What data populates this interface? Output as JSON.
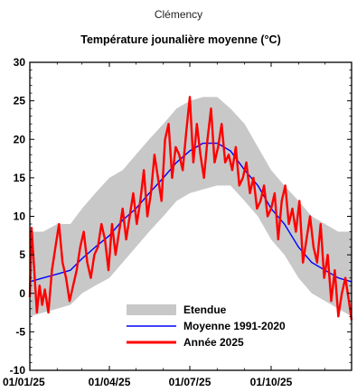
{
  "page": {
    "title": "Clémency"
  },
  "chart_data": {
    "type": "line",
    "title": "Température jounalière moyenne (°C)",
    "xlabel": "",
    "ylabel": "",
    "x_range": [
      "2025-01-01",
      "2025-12-31"
    ],
    "ylim": [
      -10,
      30
    ],
    "y_ticks": [
      -10,
      -5,
      0,
      5,
      10,
      15,
      20,
      25,
      30
    ],
    "x_ticks": [
      {
        "date": "2025-01-01",
        "label": "01/01/25"
      },
      {
        "date": "2025-04-01",
        "label": "01/04/25"
      },
      {
        "date": "2025-07-01",
        "label": "01/07/25"
      },
      {
        "date": "2025-10-01",
        "label": "01/10/25"
      }
    ],
    "grid": false,
    "legend_position": "bottom-center",
    "legend": [
      {
        "name": "Etendue",
        "kind": "area",
        "color": "#c8c8c8"
      },
      {
        "name": "Moyenne 1991-2020",
        "kind": "line",
        "color": "#0000ff"
      },
      {
        "name": "Année 2025",
        "kind": "line",
        "color": "#ff0000"
      }
    ],
    "series": [
      {
        "name": "Etendue",
        "kind": "range",
        "color": "#c8c8c8",
        "x": [
          "2025-01-01",
          "2025-01-16",
          "2025-02-01",
          "2025-02-16",
          "2025-03-01",
          "2025-03-16",
          "2025-04-01",
          "2025-04-16",
          "2025-05-01",
          "2025-05-16",
          "2025-06-01",
          "2025-06-16",
          "2025-07-01",
          "2025-07-16",
          "2025-08-01",
          "2025-08-16",
          "2025-09-01",
          "2025-09-16",
          "2025-10-01",
          "2025-10-16",
          "2025-11-01",
          "2025-11-16",
          "2025-12-01",
          "2025-12-16",
          "2025-12-31"
        ],
        "low": [
          -3,
          -2.5,
          -2,
          -1.5,
          0,
          1,
          2,
          4,
          6,
          8,
          10,
          12,
          13,
          13.5,
          14,
          14,
          12,
          10,
          7,
          5,
          2,
          0,
          -1,
          -2,
          -3
        ],
        "high": [
          8,
          8,
          9,
          9,
          11,
          13,
          15,
          16,
          18,
          20,
          22,
          24,
          25,
          25.5,
          25.5,
          24,
          22,
          19,
          16,
          14,
          12,
          10,
          9,
          8,
          8
        ]
      },
      {
        "name": "Moyenne 1991-2020",
        "kind": "line",
        "color": "#0000ff",
        "x": [
          "2025-01-01",
          "2025-01-16",
          "2025-02-01",
          "2025-02-16",
          "2025-03-01",
          "2025-03-16",
          "2025-04-01",
          "2025-04-16",
          "2025-05-01",
          "2025-05-16",
          "2025-06-01",
          "2025-06-16",
          "2025-07-01",
          "2025-07-16",
          "2025-08-01",
          "2025-08-16",
          "2025-09-01",
          "2025-09-16",
          "2025-10-01",
          "2025-10-16",
          "2025-11-01",
          "2025-11-16",
          "2025-12-01",
          "2025-12-16",
          "2025-12-31"
        ],
        "y": [
          1.5,
          2,
          2.5,
          3,
          4.5,
          6,
          7.5,
          9.5,
          11,
          13,
          15,
          17,
          18.5,
          19.5,
          19.5,
          18.5,
          16,
          14,
          11,
          9,
          6,
          4,
          3,
          2,
          1.5
        ]
      },
      {
        "name": "Année 2025",
        "kind": "line",
        "color": "#ff0000",
        "x": [
          "2025-01-01",
          "2025-01-03",
          "2025-01-06",
          "2025-01-09",
          "2025-01-12",
          "2025-01-15",
          "2025-01-18",
          "2025-01-22",
          "2025-01-26",
          "2025-01-30",
          "2025-02-03",
          "2025-02-07",
          "2025-02-11",
          "2025-02-15",
          "2025-02-19",
          "2025-02-23",
          "2025-02-27",
          "2025-03-03",
          "2025-03-07",
          "2025-03-11",
          "2025-03-15",
          "2025-03-19",
          "2025-03-23",
          "2025-03-27",
          "2025-03-31",
          "2025-04-04",
          "2025-04-08",
          "2025-04-12",
          "2025-04-16",
          "2025-04-20",
          "2025-04-24",
          "2025-04-28",
          "2025-05-02",
          "2025-05-06",
          "2025-05-10",
          "2025-05-14",
          "2025-05-18",
          "2025-05-22",
          "2025-05-26",
          "2025-05-30",
          "2025-06-03",
          "2025-06-07",
          "2025-06-11",
          "2025-06-15",
          "2025-06-19",
          "2025-06-23",
          "2025-06-27",
          "2025-07-01",
          "2025-07-05",
          "2025-07-09",
          "2025-07-13",
          "2025-07-17",
          "2025-07-21",
          "2025-07-25",
          "2025-07-29",
          "2025-08-02",
          "2025-08-06",
          "2025-08-10",
          "2025-08-14",
          "2025-08-18",
          "2025-08-22",
          "2025-08-26",
          "2025-08-30",
          "2025-09-03",
          "2025-09-07",
          "2025-09-11",
          "2025-09-15",
          "2025-09-19",
          "2025-09-23",
          "2025-09-27",
          "2025-10-01",
          "2025-10-05",
          "2025-10-09",
          "2025-10-13",
          "2025-10-17",
          "2025-10-21",
          "2025-10-25",
          "2025-10-29",
          "2025-11-02",
          "2025-11-06",
          "2025-11-10",
          "2025-11-14",
          "2025-11-18",
          "2025-11-22",
          "2025-11-26",
          "2025-11-30",
          "2025-12-04",
          "2025-12-08",
          "2025-12-12",
          "2025-12-16",
          "2025-12-20",
          "2025-12-24",
          "2025-12-28",
          "2025-12-31"
        ],
        "y": [
          -0.5,
          8.5,
          3,
          -2.5,
          1,
          -1.5,
          0.5,
          -2.5,
          3,
          6,
          9,
          4,
          2,
          -1,
          1,
          3,
          6,
          8,
          4,
          2,
          5,
          6,
          9,
          7,
          3,
          9,
          5,
          8,
          11,
          7,
          10,
          13,
          9,
          12,
          16,
          10,
          13,
          18,
          15,
          12,
          20,
          22,
          15,
          19,
          18,
          16,
          21,
          25.5,
          17,
          22,
          18,
          15,
          20,
          24,
          17,
          19,
          22,
          17,
          18,
          16,
          19,
          14,
          15,
          17,
          13,
          15,
          11,
          12,
          14,
          10,
          11,
          13,
          7,
          12,
          14,
          9,
          11,
          8,
          12,
          4,
          7,
          10,
          6,
          4,
          9,
          2,
          5,
          -1,
          3,
          -3,
          0,
          2,
          -1,
          -3.5
        ]
      }
    ]
  }
}
